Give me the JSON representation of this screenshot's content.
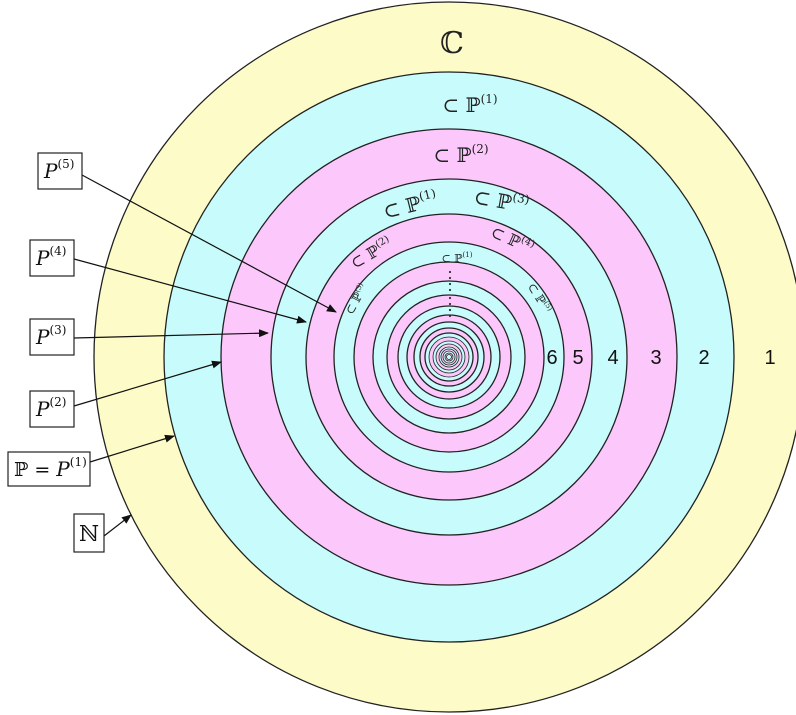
{
  "diagram": {
    "outer_set": "ℂ",
    "palette": {
      "yellow": "#fdfcc8",
      "cyan": "#c8fbfb",
      "pink": "#fcc8fb",
      "stroke": "#222222"
    },
    "ring_numbers": [
      "1",
      "2",
      "3",
      "4",
      "5",
      "6"
    ],
    "ring_labels": [
      {
        "text": "⊂ ℙ",
        "sup": "(1)"
      },
      {
        "text": "⊂ ℙ",
        "sup": "(2)"
      },
      {
        "text": "⊂ ℙ",
        "sup": "(1)"
      },
      {
        "text": "⊂ ℙ",
        "sup": "(3)"
      },
      {
        "text": "⊂ ℙ",
        "sup": "(2)"
      },
      {
        "text": "⊂ ℙ",
        "sup": "(4)"
      },
      {
        "text": "⊂ ℙ",
        "sup": "(3)"
      },
      {
        "text": "⊂ ℙ",
        "sup": "(1)"
      },
      {
        "text": "⊂ ℙ",
        "sup": "(5)"
      }
    ],
    "left_boxes": [
      {
        "main": "P",
        "sup": "(5)"
      },
      {
        "main": "P",
        "sup": "(4)"
      },
      {
        "main": "P",
        "sup": "(3)"
      },
      {
        "main": "P",
        "sup": "(2)"
      },
      {
        "prefix": "ℙ = ",
        "main": "P",
        "sup": "(1)"
      },
      {
        "bb": "ℕ"
      }
    ]
  }
}
